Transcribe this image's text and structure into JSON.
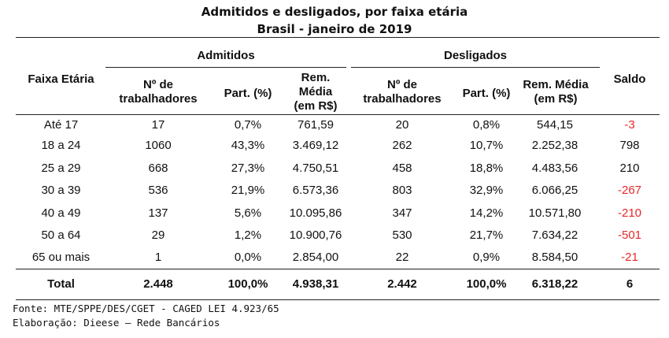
{
  "title": "Admitidos e desligados, por faixa etária",
  "subtitle": "Brasil - janeiro de 2019",
  "headers": {
    "faixa": "Faixa Etária",
    "admitidos": "Admitidos",
    "desligados": "Desligados",
    "saldo": "Saldo",
    "n_trab_1": "Nº de",
    "n_trab_2": "trabalhadores",
    "part": "Part. (%)",
    "rem_adm_1": "Rem.",
    "rem_adm_2": "Média",
    "rem_adm_3": "(em R$)",
    "rem_des_1": "Rem. Média",
    "rem_des_2": "(em R$)"
  },
  "rows": [
    [
      "Até 17",
      "17",
      "0,7%",
      "761,59",
      "20",
      "0,8%",
      "544,15",
      "-3"
    ],
    [
      "18 a 24",
      "1060",
      "43,3%",
      "3.469,12",
      "262",
      "10,7%",
      "2.252,38",
      "798"
    ],
    [
      "25 a 29",
      "668",
      "27,3%",
      "4.750,51",
      "458",
      "18,8%",
      "4.483,56",
      "210"
    ],
    [
      "30 a 39",
      "536",
      "21,9%",
      "6.573,36",
      "803",
      "32,9%",
      "6.066,25",
      "-267"
    ],
    [
      "40 a 49",
      "137",
      "5,6%",
      "10.095,86",
      "347",
      "14,2%",
      "10.571,80",
      "-210"
    ],
    [
      "50 a 64",
      "29",
      "1,2%",
      "10.900,76",
      "530",
      "21,7%",
      "7.634,22",
      "-501"
    ],
    [
      "65 ou mais",
      "1",
      "0,0%",
      "2.854,00",
      "22",
      "0,9%",
      "8.584,50",
      "-21"
    ]
  ],
  "total": [
    "Total",
    "2.448",
    "100,0%",
    "4.938,31",
    "2.442",
    "100,0%",
    "6.318,22",
    "6"
  ],
  "footer": {
    "source": "Fonte: MTE/SPPE/DES/CGET - CAGED LEI 4.923/65",
    "elaboration": "Elaboração: Dieese – Rede Bancários"
  },
  "colors": {
    "negative": "#e8262a",
    "text": "#111111",
    "rule": "#222222"
  }
}
